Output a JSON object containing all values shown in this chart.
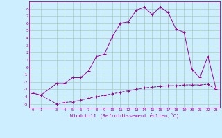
{
  "xlabel": "Windchill (Refroidissement éolien,°C)",
  "x_main": [
    0,
    1,
    3,
    4,
    5,
    6,
    7,
    8,
    9,
    10,
    11,
    12,
    13,
    14,
    15,
    16,
    17,
    18,
    19,
    20,
    21,
    22,
    23
  ],
  "y_main": [
    -3.5,
    -3.8,
    -2.2,
    -2.2,
    -1.4,
    -1.4,
    -0.5,
    1.5,
    1.8,
    4.2,
    6.0,
    6.2,
    7.8,
    8.2,
    7.2,
    8.2,
    7.5,
    5.2,
    4.8,
    -0.3,
    -1.4,
    1.5,
    -2.8
  ],
  "x_ref": [
    0,
    1,
    3,
    4,
    5,
    6,
    7,
    8,
    9,
    10,
    11,
    12,
    13,
    14,
    15,
    16,
    17,
    18,
    19,
    20,
    21,
    22,
    23
  ],
  "y_ref": [
    -3.5,
    -3.8,
    -5.0,
    -4.8,
    -4.7,
    -4.5,
    -4.2,
    -4.0,
    -3.8,
    -3.6,
    -3.4,
    -3.2,
    -3.0,
    -2.8,
    -2.7,
    -2.6,
    -2.5,
    -2.5,
    -2.4,
    -2.4,
    -2.4,
    -2.3,
    -3.0
  ],
  "line_color": "#990099",
  "bg_color": "#cceeff",
  "grid_color": "#aaccbb",
  "ylim": [
    -5.5,
    9.0
  ],
  "xlim": [
    -0.5,
    23.5
  ],
  "xticks": [
    0,
    1,
    3,
    4,
    5,
    6,
    7,
    8,
    9,
    10,
    11,
    12,
    13,
    14,
    15,
    16,
    17,
    18,
    19,
    20,
    21,
    22,
    23
  ],
  "yticks": [
    -5,
    -4,
    -3,
    -2,
    -1,
    0,
    1,
    2,
    3,
    4,
    5,
    6,
    7,
    8
  ]
}
